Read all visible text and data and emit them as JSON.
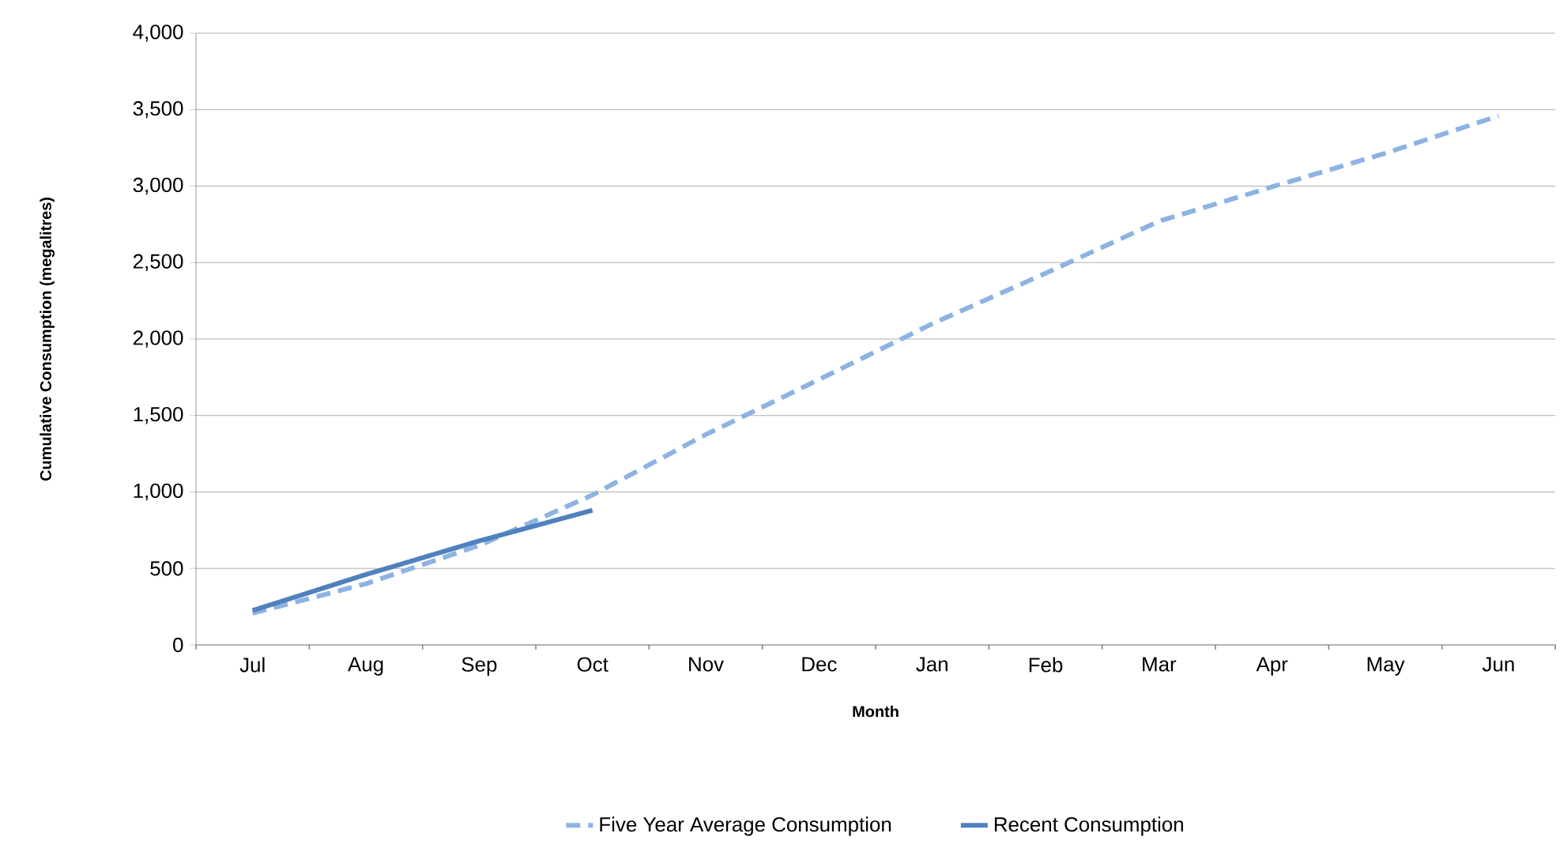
{
  "chart_data": {
    "type": "line",
    "xlabel": "Month",
    "ylabel": "Cumulative Consumption (megalitres)",
    "categories": [
      "Jul",
      "Aug",
      "Sep",
      "Oct",
      "Nov",
      "Dec",
      "Jan",
      "Feb",
      "Mar",
      "Apr",
      "May",
      "Jun"
    ],
    "series": [
      {
        "name": "Five Year Average Consumption",
        "color": "#8db3e2",
        "line_style": "dashed",
        "values": [
          207,
          400,
          650,
          980,
          1375,
          1735,
          2100,
          2430,
          2770,
          2995,
          3215,
          3460
        ]
      },
      {
        "name": "Recent Consumption",
        "color": "#4f81bd",
        "line_style": "solid",
        "values": [
          225,
          460,
          680,
          880,
          null,
          null,
          null,
          null,
          null,
          null,
          null,
          null
        ]
      }
    ],
    "ylim": [
      0,
      4000
    ],
    "yticks": [
      {
        "value": 0,
        "label": "0"
      },
      {
        "value": 500,
        "label": "500"
      },
      {
        "value": 1000,
        "label": "1,000"
      },
      {
        "value": 1500,
        "label": "1,500"
      },
      {
        "value": 2000,
        "label": "2,000"
      },
      {
        "value": 2500,
        "label": "2,500"
      },
      {
        "value": 3000,
        "label": "3,000"
      },
      {
        "value": 3500,
        "label": "3,500"
      },
      {
        "value": 4000,
        "label": "4,000"
      }
    ],
    "grid": "y",
    "legend": "bottom",
    "marker": "none"
  }
}
